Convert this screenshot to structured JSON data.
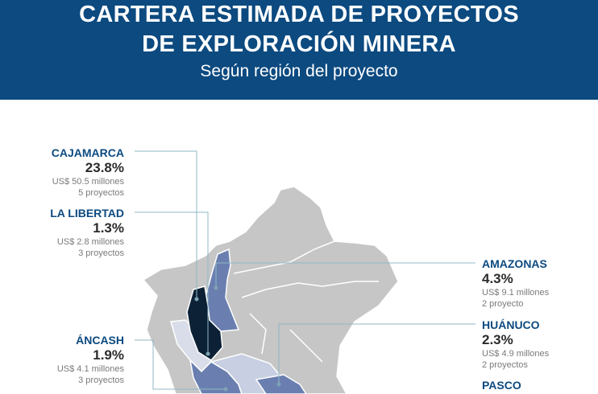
{
  "header": {
    "title_line1": "CARTERA ESTIMADA DE PROYECTOS",
    "title_line2": "DE EXPLORACIÓN MINERA",
    "subtitle": "Según región del proyecto"
  },
  "regions": [
    {
      "key": "cajamarca",
      "name": "CAJAMARCA",
      "percent": "23.8%",
      "amount": "US$ 50.5 millones",
      "projects": "5 proyectos",
      "color": "#0d2136"
    },
    {
      "key": "la_libertad",
      "name": "LA LIBERTAD",
      "percent": "1.3%",
      "amount": "US$ 2.8 millones",
      "projects": "3 proyectos",
      "color": "#d9dde9"
    },
    {
      "key": "ancash",
      "name": "ÁNCASH",
      "percent": "1.9%",
      "amount": "US$ 4.1 millones",
      "projects": "3 proyectos",
      "color": "#6a7fb0"
    },
    {
      "key": "amazonas",
      "name": "AMAZONAS",
      "percent": "4.3%",
      "amount": "US$ 9.1 millones",
      "projects": "2 proyecto",
      "color": "#6a7fb0"
    },
    {
      "key": "huanuco",
      "name": "HUÁNUCO",
      "percent": "2.3%",
      "amount": "US$ 4.9 millones",
      "projects": "2 proyectos",
      "color": "#c8cfe2"
    },
    {
      "key": "pasco",
      "name": "PASCO",
      "color": "#6a7fb0"
    }
  ],
  "colors": {
    "header_bg": "#0c4a80",
    "land": "#c6c6c6",
    "border": "#ffffff",
    "leader": "#8fb8c4"
  }
}
